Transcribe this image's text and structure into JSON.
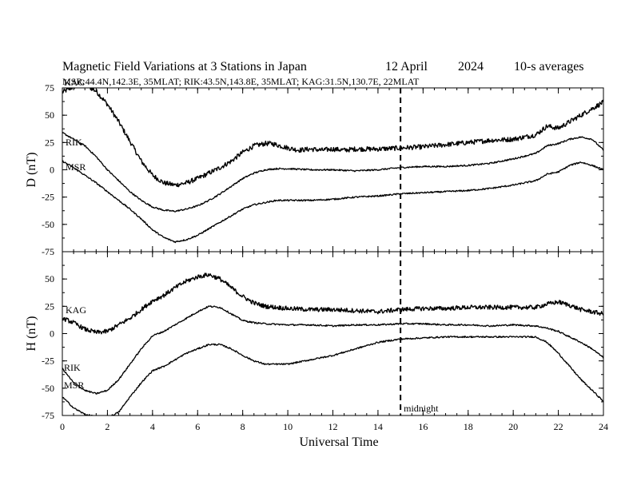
{
  "header": {
    "title": "Magnetic Field Variations at 3 Stations in Japan",
    "date": "12 April",
    "year": "2024",
    "resolution": "10-s averages",
    "stations_line": "MSR:44.4N,142.3E, 35MLAT;  RIK:43.5N,143.8E, 35MLAT;  KAG:31.5N,130.7E, 22MLAT"
  },
  "chart_data": [
    {
      "type": "line",
      "panel": "D",
      "ylabel": "D (nT)",
      "ylim": [
        -75,
        75
      ],
      "yticks": [
        75,
        50,
        25,
        0,
        -25,
        -50,
        -75
      ],
      "xlim": [
        0,
        24
      ],
      "xticks": [
        0,
        2,
        4,
        6,
        8,
        10,
        12,
        14,
        16,
        18,
        20,
        22,
        24
      ],
      "series": [
        {
          "name": "KAG",
          "noise": 2.2,
          "x": [
            0,
            0.5,
            1,
            1.5,
            2,
            2.5,
            3,
            3.5,
            4,
            4.5,
            5,
            5.5,
            6,
            6.5,
            7,
            7.5,
            8,
            8.5,
            9,
            9.3,
            10,
            10.5,
            11,
            11.5,
            12,
            12.5,
            13,
            14,
            15,
            16,
            17,
            18,
            19,
            20,
            21,
            21.5,
            22,
            22.5,
            23,
            23.5,
            24
          ],
          "y": [
            71,
            76,
            78,
            72,
            60,
            44,
            26,
            8,
            -5,
            -12,
            -14,
            -12,
            -8,
            -3,
            2,
            8,
            16,
            22,
            24,
            24,
            20,
            18,
            19,
            18,
            19,
            18,
            19,
            19,
            20,
            21,
            23,
            25,
            27,
            28,
            32,
            40,
            38,
            44,
            50,
            56,
            62
          ]
        },
        {
          "name": "RIK",
          "noise": 0.7,
          "x": [
            0,
            0.5,
            1,
            1.5,
            2,
            2.5,
            3,
            3.5,
            4,
            4.5,
            5,
            5.5,
            6,
            6.5,
            7,
            7.5,
            8,
            8.5,
            9,
            9.5,
            10,
            11,
            12,
            13,
            14,
            15,
            16,
            17,
            18,
            19,
            20,
            21,
            21.5,
            22,
            22.5,
            23,
            23.5,
            24
          ],
          "y": [
            34,
            28,
            22,
            12,
            0,
            -10,
            -20,
            -28,
            -34,
            -37,
            -38,
            -36,
            -33,
            -28,
            -22,
            -15,
            -8,
            -3,
            0,
            1,
            1,
            0,
            0,
            -1,
            0,
            2,
            3,
            3,
            4,
            6,
            10,
            15,
            22,
            24,
            28,
            30,
            28,
            18
          ]
        },
        {
          "name": "MSR",
          "noise": 0.7,
          "x": [
            0,
            0.5,
            1,
            1.5,
            2,
            2.5,
            3,
            3.5,
            4,
            4.5,
            5,
            5.5,
            6,
            6.5,
            7,
            7.5,
            8,
            8.5,
            9,
            9.5,
            10,
            11,
            12,
            13,
            14,
            15,
            16,
            17,
            18,
            19,
            20,
            21,
            21.5,
            22,
            22.5,
            23,
            23.5,
            24
          ],
          "y": [
            8,
            2,
            -5,
            -12,
            -20,
            -28,
            -36,
            -45,
            -55,
            -62,
            -66,
            -64,
            -60,
            -54,
            -48,
            -42,
            -36,
            -32,
            -30,
            -28,
            -28,
            -28,
            -27,
            -25,
            -24,
            -22,
            -21,
            -20,
            -19,
            -17,
            -14,
            -10,
            -4,
            -2,
            4,
            7,
            4,
            0
          ]
        }
      ]
    },
    {
      "type": "line",
      "panel": "H",
      "ylabel": "H (nT)",
      "xlabel": "Universal Time",
      "ylim": [
        -75,
        75
      ],
      "yticks": [
        50,
        25,
        0,
        -25,
        -50,
        -75
      ],
      "xlim": [
        0,
        24
      ],
      "xticks": [
        0,
        2,
        4,
        6,
        8,
        10,
        12,
        14,
        16,
        18,
        20,
        22,
        24
      ],
      "series": [
        {
          "name": "KAG",
          "noise": 2.0,
          "x": [
            0,
            0.5,
            1,
            1.5,
            2,
            2.5,
            3,
            3.5,
            4,
            4.5,
            5,
            5.5,
            6,
            6.5,
            7,
            7.5,
            8,
            8.5,
            9,
            10,
            11,
            12,
            13,
            14,
            15,
            16,
            17,
            18,
            19,
            20,
            21,
            21.5,
            22,
            22.5,
            23,
            23.5,
            24
          ],
          "y": [
            14,
            10,
            4,
            1,
            2,
            8,
            14,
            22,
            30,
            35,
            42,
            48,
            52,
            54,
            50,
            42,
            34,
            28,
            25,
            23,
            22,
            22,
            21,
            20,
            22,
            23,
            23,
            24,
            24,
            24,
            24,
            27,
            29,
            26,
            22,
            20,
            18
          ]
        },
        {
          "name": "RIK",
          "noise": 0.7,
          "x": [
            0,
            0.5,
            1,
            1.5,
            2,
            2.5,
            3,
            3.5,
            4,
            4.5,
            5,
            5.5,
            6,
            6.5,
            7,
            7.5,
            8,
            8.5,
            9,
            10,
            11,
            12,
            13,
            14,
            15,
            16,
            17,
            18,
            19,
            20,
            21,
            21.5,
            22,
            22.5,
            23,
            23.5,
            24
          ],
          "y": [
            -32,
            -45,
            -52,
            -55,
            -52,
            -42,
            -28,
            -14,
            -2,
            2,
            8,
            14,
            20,
            25,
            24,
            18,
            12,
            10,
            9,
            8,
            8,
            7,
            8,
            8,
            9,
            9,
            8,
            8,
            7,
            8,
            7,
            5,
            2,
            -3,
            -8,
            -14,
            -22
          ]
        },
        {
          "name": "MSR",
          "noise": 0.7,
          "x": [
            0,
            0.5,
            1,
            1.5,
            2,
            2.5,
            3,
            3.5,
            4,
            4.5,
            5,
            5.5,
            6,
            6.5,
            7,
            7.5,
            8,
            8.5,
            9,
            10,
            11,
            12,
            13,
            14,
            15,
            16,
            17,
            18,
            19,
            20,
            21,
            21.5,
            22,
            22.5,
            23,
            23.5,
            24
          ],
          "y": [
            -58,
            -68,
            -74,
            -76,
            -77,
            -72,
            -58,
            -45,
            -34,
            -30,
            -24,
            -18,
            -14,
            -10,
            -10,
            -14,
            -20,
            -25,
            -28,
            -28,
            -24,
            -20,
            -14,
            -8,
            -5,
            -4,
            -3,
            -3,
            -3,
            -3,
            -3,
            -8,
            -18,
            -30,
            -42,
            -52,
            -62
          ]
        }
      ]
    }
  ],
  "annotations": {
    "midnight_label": "midnight",
    "midnight_x": 15
  }
}
